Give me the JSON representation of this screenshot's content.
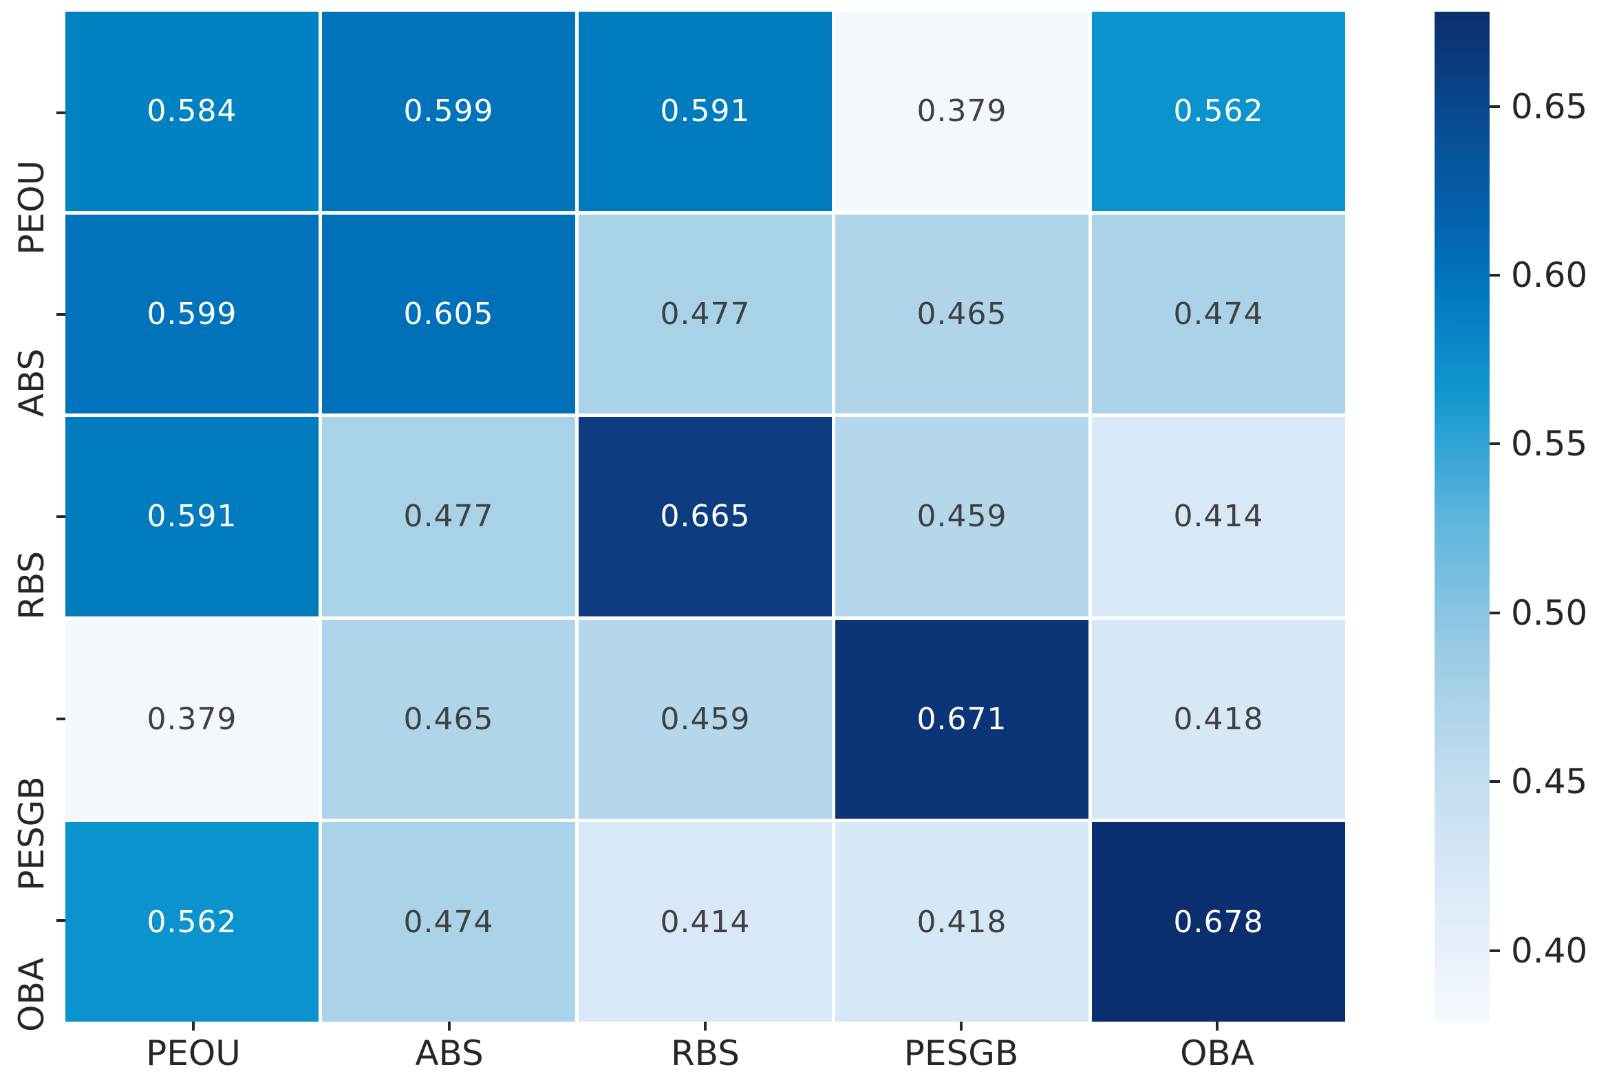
{
  "chart_data": {
    "type": "heatmap",
    "title": "",
    "xlabel": "",
    "ylabel": "",
    "categories": [
      "PEOU",
      "ABS",
      "RBS",
      "PESGB",
      "OBA"
    ],
    "x_tick_labels": [
      "PEOU",
      "ABS",
      "RBS",
      "PESGB",
      "OBA"
    ],
    "y_tick_labels": [
      "PEOU",
      "ABS",
      "RBS",
      "PESGB",
      "OBA"
    ],
    "matrix": [
      [
        0.584,
        0.599,
        0.591,
        0.379,
        0.562
      ],
      [
        0.599,
        0.605,
        0.477,
        0.465,
        0.474
      ],
      [
        0.591,
        0.477,
        0.665,
        0.459,
        0.414
      ],
      [
        0.379,
        0.465,
        0.459,
        0.671,
        0.418
      ],
      [
        0.562,
        0.474,
        0.414,
        0.418,
        0.678
      ]
    ],
    "value_decimals": 3,
    "colormap": "Blues",
    "vmin": 0.379,
    "vmax": 0.678,
    "colorbar_ticks": [
      "0.65",
      "0.60",
      "0.55",
      "0.50",
      "0.45",
      "0.40"
    ],
    "legend_position": "right-colorbar",
    "grid": "white cell separators",
    "annotations": "each cell labeled with its value"
  },
  "figure": {
    "cells": [
      {
        "value": "0.584",
        "bg": "#0082c2",
        "fg": "#ffffff"
      },
      {
        "value": "0.599",
        "bg": "#0073bb",
        "fg": "#ffffff"
      },
      {
        "value": "0.591",
        "bg": "#007bbe",
        "fg": "#ffffff"
      },
      {
        "value": "0.379",
        "bg": "#f3f8fd",
        "fg": "#404040"
      },
      {
        "value": "0.562",
        "bg": "#0b93cd",
        "fg": "#ffffff"
      },
      {
        "value": "0.599",
        "bg": "#0073bb",
        "fg": "#ffffff"
      },
      {
        "value": "0.605",
        "bg": "#0070b9",
        "fg": "#ffffff"
      },
      {
        "value": "0.477",
        "bg": "#a8d2e8",
        "fg": "#404040"
      },
      {
        "value": "0.465",
        "bg": "#b0d5ea",
        "fg": "#404040"
      },
      {
        "value": "0.474",
        "bg": "#aad3e9",
        "fg": "#404040"
      },
      {
        "value": "0.591",
        "bg": "#007bbe",
        "fg": "#ffffff"
      },
      {
        "value": "0.477",
        "bg": "#a8d2e8",
        "fg": "#404040"
      },
      {
        "value": "0.665",
        "bg": "#0d3c80",
        "fg": "#ffffff"
      },
      {
        "value": "0.459",
        "bg": "#b5d7eb",
        "fg": "#404040"
      },
      {
        "value": "0.414",
        "bg": "#d9e8f6",
        "fg": "#404040"
      },
      {
        "value": "0.379",
        "bg": "#f3f8fd",
        "fg": "#404040"
      },
      {
        "value": "0.465",
        "bg": "#b0d5ea",
        "fg": "#404040"
      },
      {
        "value": "0.459",
        "bg": "#b5d7eb",
        "fg": "#404040"
      },
      {
        "value": "0.671",
        "bg": "#0c3577",
        "fg": "#ffffff"
      },
      {
        "value": "0.418",
        "bg": "#d6e7f5",
        "fg": "#404040"
      },
      {
        "value": "0.562",
        "bg": "#0b93cd",
        "fg": "#ffffff"
      },
      {
        "value": "0.474",
        "bg": "#aad3e9",
        "fg": "#404040"
      },
      {
        "value": "0.414",
        "bg": "#d9e8f6",
        "fg": "#404040"
      },
      {
        "value": "0.418",
        "bg": "#d6e7f5",
        "fg": "#404040"
      },
      {
        "value": "0.678",
        "bg": "#0b2f6e",
        "fg": "#ffffff"
      }
    ],
    "colorbar": {
      "ticks": [
        {
          "label": "0.65",
          "pct": 9.37
        },
        {
          "label": "0.60",
          "pct": 26.09
        },
        {
          "label": "0.55",
          "pct": 42.81
        },
        {
          "label": "0.50",
          "pct": 59.53
        },
        {
          "label": "0.45",
          "pct": 76.25
        },
        {
          "label": "0.40",
          "pct": 92.98
        }
      ],
      "gradient": [
        {
          "color": "#0b2f6e",
          "pct": 0
        },
        {
          "color": "#084f97",
          "pct": 12.5
        },
        {
          "color": "#0070b9",
          "pct": 25
        },
        {
          "color": "#1096cf",
          "pct": 37.5
        },
        {
          "color": "#5cb5dd",
          "pct": 50
        },
        {
          "color": "#96cae4",
          "pct": 62.5
        },
        {
          "color": "#c0dcef",
          "pct": 75
        },
        {
          "color": "#ddeaf7",
          "pct": 87.5
        },
        {
          "color": "#f5f9fe",
          "pct": 100
        }
      ]
    },
    "axis_color": "#262626"
  }
}
